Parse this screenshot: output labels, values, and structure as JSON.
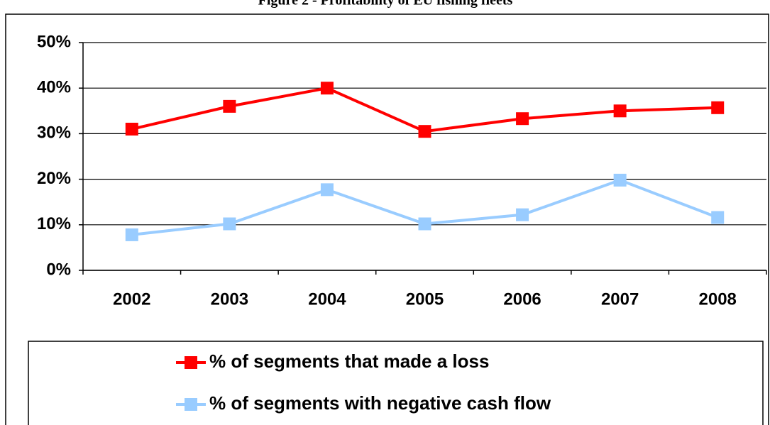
{
  "chart_data": {
    "type": "line",
    "title": "Figure 2 - Profitability of EU fishing fleets",
    "categories": [
      "2002",
      "2003",
      "2004",
      "2005",
      "2006",
      "2007",
      "2008"
    ],
    "series": [
      {
        "name": "% of segments that made a loss",
        "color": "#ff0000",
        "values": [
          31,
          36,
          40,
          30.5,
          33.3,
          35,
          35.7
        ]
      },
      {
        "name": "% of segments with negative cash flow",
        "color": "#99ccff",
        "values": [
          7.8,
          10.2,
          17.7,
          10.2,
          12.2,
          19.8,
          11.6
        ]
      }
    ],
    "ylim": [
      0,
      50
    ],
    "yticks": [
      {
        "value": 0,
        "label": "0%"
      },
      {
        "value": 10,
        "label": "10%"
      },
      {
        "value": 20,
        "label": "20%"
      },
      {
        "value": 30,
        "label": "30%"
      },
      {
        "value": 40,
        "label": "40%"
      },
      {
        "value": 50,
        "label": "50%"
      }
    ],
    "grid": true,
    "legend": "bottom"
  }
}
